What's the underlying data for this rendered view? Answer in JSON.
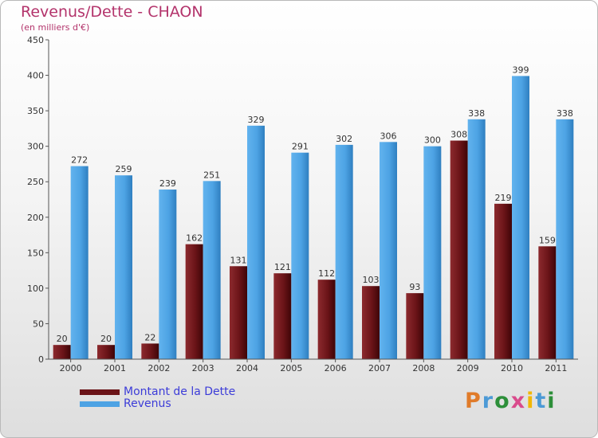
{
  "title": "Revenus/Dette - CHAON",
  "subtitle": "(en milliers d'€)",
  "logo": {
    "text": "Proxiti",
    "colors": [
      "#e07b2a",
      "#4c9ad6",
      "#2d8f3a",
      "#d94b8c",
      "#f2b705",
      "#4c9ad6",
      "#2d8f3a"
    ]
  },
  "chart_data": {
    "type": "bar",
    "categories": [
      "2000",
      "2001",
      "2002",
      "2003",
      "2004",
      "2005",
      "2006",
      "2007",
      "2008",
      "2009",
      "2010",
      "2011"
    ],
    "series": [
      {
        "name": "Montant de la Dette",
        "color": "#6b1418",
        "values": [
          20,
          20,
          22,
          162,
          131,
          121,
          112,
          103,
          93,
          308,
          219,
          159
        ]
      },
      {
        "name": "Revenus",
        "color": "#4da3e4",
        "values": [
          272,
          259,
          239,
          251,
          329,
          291,
          302,
          306,
          300,
          338,
          399,
          338
        ]
      }
    ],
    "ylim": [
      0,
      450
    ],
    "yticks": [
      0,
      50,
      100,
      150,
      200,
      250,
      300,
      350,
      400,
      450
    ],
    "grid": false,
    "legend": "bottom-left"
  }
}
